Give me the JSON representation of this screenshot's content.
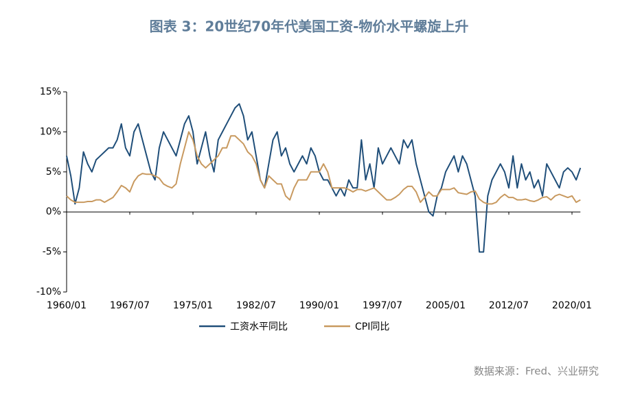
{
  "chart_data": {
    "type": "line",
    "title": "图表 3：20世纪70年代美国工资-物价水平螺旋上升",
    "source": "数据来源：Fred、兴业研究",
    "x": [
      "1960/01",
      "1960/07",
      "1961/01",
      "1961/07",
      "1962/01",
      "1962/07",
      "1963/01",
      "1963/07",
      "1964/01",
      "1964/07",
      "1965/01",
      "1965/07",
      "1966/01",
      "1966/07",
      "1967/01",
      "1967/07",
      "1968/01",
      "1968/07",
      "1969/01",
      "1969/07",
      "1970/01",
      "1970/07",
      "1971/01",
      "1971/07",
      "1972/01",
      "1972/07",
      "1973/01",
      "1973/07",
      "1974/01",
      "1974/07",
      "1975/01",
      "1975/07",
      "1976/01",
      "1976/07",
      "1977/01",
      "1977/07",
      "1978/01",
      "1978/07",
      "1979/01",
      "1979/07",
      "1980/01",
      "1980/07",
      "1981/01",
      "1981/07",
      "1982/01",
      "1982/07",
      "1983/01",
      "1983/07",
      "1984/01",
      "1984/07",
      "1985/01",
      "1985/07",
      "1986/01",
      "1986/07",
      "1987/01",
      "1987/07",
      "1988/01",
      "1988/07",
      "1989/01",
      "1989/07",
      "1990/01",
      "1990/07",
      "1991/01",
      "1991/07",
      "1992/01",
      "1992/07",
      "1993/01",
      "1993/07",
      "1994/01",
      "1994/07",
      "1995/01",
      "1995/07",
      "1996/01",
      "1996/07",
      "1997/01",
      "1997/07",
      "1998/01",
      "1998/07",
      "1999/01",
      "1999/07",
      "2000/01",
      "2000/07",
      "2001/01",
      "2001/07",
      "2002/01",
      "2002/07",
      "2003/01",
      "2003/07",
      "2004/01",
      "2004/07",
      "2005/01",
      "2005/07",
      "2006/01",
      "2006/07",
      "2007/01",
      "2007/07",
      "2008/01",
      "2008/07",
      "2009/01",
      "2009/07",
      "2010/01",
      "2010/07",
      "2011/01",
      "2011/07",
      "2012/01",
      "2012/07",
      "2013/01",
      "2013/07",
      "2014/01",
      "2014/07",
      "2015/01",
      "2015/07",
      "2016/01",
      "2016/07",
      "2017/01",
      "2017/07",
      "2018/01",
      "2018/07",
      "2019/01",
      "2019/07",
      "2020/01",
      "2020/07",
      "2021/01"
    ],
    "xticks": [
      "1960/01",
      "1967/07",
      "1975/01",
      "1982/07",
      "1990/01",
      "1997/07",
      "2005/01",
      "2012/07",
      "2020/01"
    ],
    "series": [
      {
        "name": "工资水平同比",
        "color": "#1f4e79",
        "values": [
          7,
          4.5,
          1,
          3,
          7.5,
          6,
          5,
          6.5,
          7,
          7.5,
          8,
          8,
          9,
          11,
          8,
          7,
          10,
          11,
          9,
          7,
          5,
          4,
          8,
          10,
          9,
          8,
          7,
          9,
          11,
          12,
          10,
          6,
          8,
          10,
          7,
          5,
          9,
          10,
          11,
          12,
          13,
          13.5,
          12,
          9,
          10,
          7,
          4,
          3,
          6,
          9,
          10,
          7,
          8,
          6,
          5,
          6,
          7,
          6,
          8,
          7,
          5,
          4,
          4,
          3,
          2,
          3,
          2,
          4,
          3,
          3,
          9,
          4,
          6,
          3,
          8,
          6,
          7,
          8,
          7,
          6,
          9,
          8,
          9,
          6,
          4,
          2,
          0,
          -0.5,
          2,
          3,
          5,
          6,
          7,
          5,
          7,
          6,
          4,
          2,
          -5,
          -5,
          2,
          4,
          5,
          6,
          5,
          3,
          7,
          3,
          6,
          4,
          5,
          3,
          4,
          2,
          6,
          5,
          4,
          3,
          5,
          5.5,
          5,
          4,
          5.5
        ]
      },
      {
        "name": "CPI同比",
        "color": "#c8995f",
        "values": [
          2,
          1.5,
          1.2,
          1.2,
          1.2,
          1.3,
          1.3,
          1.5,
          1.5,
          1.2,
          1.5,
          1.8,
          2.5,
          3.3,
          3,
          2.5,
          3.8,
          4.5,
          4.8,
          4.7,
          4.7,
          4.5,
          4.2,
          3.5,
          3.2,
          3,
          3.5,
          6,
          8,
          10,
          9,
          7,
          6,
          5.5,
          6,
          6.5,
          7,
          8,
          8,
          9.5,
          9.5,
          9,
          8.5,
          7.5,
          7,
          6,
          4,
          3,
          4.5,
          4,
          3.5,
          3.5,
          2,
          1.5,
          3,
          4,
          4,
          4,
          5,
          5,
          5,
          6,
          5,
          3,
          3,
          3,
          3,
          2.8,
          2.5,
          2.8,
          2.8,
          2.6,
          2.8,
          3,
          2.5,
          2,
          1.5,
          1.5,
          1.8,
          2.2,
          2.8,
          3.2,
          3.2,
          2.5,
          1.2,
          1.8,
          2.5,
          2,
          2,
          2.8,
          2.8,
          2.8,
          3,
          2.4,
          2.3,
          2.2,
          2.5,
          2.6,
          1.6,
          1.2,
          1,
          1,
          1.2,
          1.8,
          2.2,
          1.8,
          1.8,
          1.5,
          1.5,
          1.6,
          1.4,
          1.3,
          1.5,
          1.8,
          1.9,
          1.5,
          2,
          2.2,
          2,
          1.8,
          2,
          1.2,
          1.5
        ]
      }
    ],
    "ylim": [
      -10,
      15
    ],
    "yticks": [
      {
        "value": -10,
        "label": "-10%"
      },
      {
        "value": -5,
        "label": "-5%"
      },
      {
        "value": 0,
        "label": "0%"
      },
      {
        "value": 5,
        "label": "5%"
      },
      {
        "value": 10,
        "label": "10%"
      },
      {
        "value": 15,
        "label": "15%"
      }
    ],
    "grid": false
  }
}
